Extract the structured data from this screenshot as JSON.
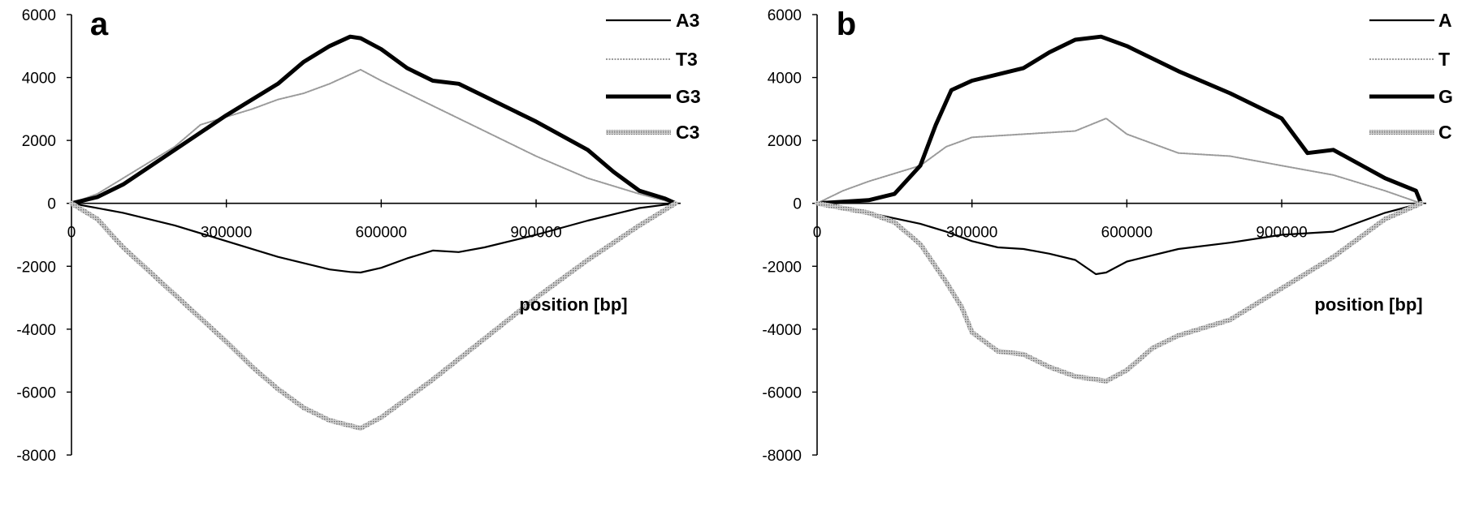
{
  "chart_data": [
    {
      "type": "line",
      "panel_label": "a",
      "xlabel": "position [bp]",
      "ylabel": "",
      "xlim": [
        0,
        1180000
      ],
      "ylim": [
        -8000,
        6000
      ],
      "x_ticks": [
        "300000",
        "600000",
        "900000"
      ],
      "x_origin_label": "0",
      "y_ticks": [
        "6000",
        "4000",
        "2000",
        "0",
        "-2000",
        "-4000",
        "-6000",
        "-8000"
      ],
      "grid": false,
      "legend_position": "top-right",
      "series": [
        {
          "name": "A3",
          "color": "#000000",
          "style": "thin-solid",
          "points": [
            [
              0,
              0
            ],
            [
              100000,
              -300
            ],
            [
              200000,
              -700
            ],
            [
              300000,
              -1200
            ],
            [
              400000,
              -1700
            ],
            [
              450000,
              -1900
            ],
            [
              500000,
              -2100
            ],
            [
              540000,
              -2180
            ],
            [
              560000,
              -2200
            ],
            [
              600000,
              -2050
            ],
            [
              650000,
              -1750
            ],
            [
              700000,
              -1500
            ],
            [
              750000,
              -1550
            ],
            [
              800000,
              -1400
            ],
            [
              900000,
              -1000
            ],
            [
              1000000,
              -550
            ],
            [
              1100000,
              -150
            ],
            [
              1170000,
              0
            ]
          ]
        },
        {
          "name": "T3",
          "color": "#9a9a9a",
          "style": "thin-dotted",
          "points": [
            [
              0,
              0
            ],
            [
              50000,
              300
            ],
            [
              100000,
              800
            ],
            [
              200000,
              1800
            ],
            [
              250000,
              2500
            ],
            [
              300000,
              2750
            ],
            [
              350000,
              3000
            ],
            [
              400000,
              3300
            ],
            [
              450000,
              3500
            ],
            [
              500000,
              3800
            ],
            [
              540000,
              4100
            ],
            [
              560000,
              4250
            ],
            [
              600000,
              3900
            ],
            [
              700000,
              3100
            ],
            [
              800000,
              2300
            ],
            [
              900000,
              1500
            ],
            [
              1000000,
              800
            ],
            [
              1100000,
              300
            ],
            [
              1170000,
              0
            ]
          ]
        },
        {
          "name": "G3",
          "color": "#000000",
          "style": "thick-solid",
          "points": [
            [
              0,
              0
            ],
            [
              50000,
              200
            ],
            [
              100000,
              600
            ],
            [
              200000,
              1700
            ],
            [
              300000,
              2800
            ],
            [
              400000,
              3800
            ],
            [
              450000,
              4500
            ],
            [
              500000,
              5000
            ],
            [
              540000,
              5300
            ],
            [
              560000,
              5250
            ],
            [
              600000,
              4900
            ],
            [
              650000,
              4300
            ],
            [
              700000,
              3900
            ],
            [
              750000,
              3800
            ],
            [
              800000,
              3400
            ],
            [
              900000,
              2600
            ],
            [
              1000000,
              1700
            ],
            [
              1050000,
              1000
            ],
            [
              1100000,
              400
            ],
            [
              1150000,
              150
            ],
            [
              1170000,
              0
            ]
          ]
        },
        {
          "name": "C3",
          "color": "#a8a8a8",
          "style": "thick-hatched",
          "points": [
            [
              0,
              0
            ],
            [
              50000,
              -500
            ],
            [
              100000,
              -1400
            ],
            [
              200000,
              -2900
            ],
            [
              300000,
              -4400
            ],
            [
              350000,
              -5200
            ],
            [
              400000,
              -5900
            ],
            [
              450000,
              -6500
            ],
            [
              500000,
              -6900
            ],
            [
              560000,
              -7150
            ],
            [
              600000,
              -6800
            ],
            [
              700000,
              -5600
            ],
            [
              800000,
              -4300
            ],
            [
              900000,
              -3000
            ],
            [
              1000000,
              -1800
            ],
            [
              1100000,
              -700
            ],
            [
              1150000,
              -200
            ],
            [
              1170000,
              0
            ]
          ]
        }
      ]
    },
    {
      "type": "line",
      "panel_label": "b",
      "xlabel": "position [bp]",
      "ylabel": "",
      "xlim": [
        0,
        1180000
      ],
      "ylim": [
        -8000,
        6000
      ],
      "x_ticks": [
        "300000",
        "600000",
        "900000"
      ],
      "x_origin_label": "0",
      "y_ticks": [
        "6000",
        "4000",
        "2000",
        "0",
        "-2000",
        "-4000",
        "-6000",
        "-8000"
      ],
      "grid": false,
      "legend_position": "top-right",
      "series": [
        {
          "name": "A",
          "color": "#000000",
          "style": "thin-solid",
          "points": [
            [
              0,
              0
            ],
            [
              100000,
              -300
            ],
            [
              200000,
              -650
            ],
            [
              250000,
              -900
            ],
            [
              300000,
              -1200
            ],
            [
              350000,
              -1400
            ],
            [
              400000,
              -1450
            ],
            [
              450000,
              -1600
            ],
            [
              500000,
              -1800
            ],
            [
              540000,
              -2250
            ],
            [
              560000,
              -2200
            ],
            [
              600000,
              -1850
            ],
            [
              700000,
              -1450
            ],
            [
              800000,
              -1250
            ],
            [
              900000,
              -1000
            ],
            [
              1000000,
              -900
            ],
            [
              1100000,
              -300
            ],
            [
              1170000,
              0
            ]
          ]
        },
        {
          "name": "T",
          "color": "#9a9a9a",
          "style": "thin-dotted",
          "points": [
            [
              0,
              0
            ],
            [
              50000,
              400
            ],
            [
              100000,
              700
            ],
            [
              200000,
              1200
            ],
            [
              250000,
              1800
            ],
            [
              300000,
              2100
            ],
            [
              400000,
              2200
            ],
            [
              500000,
              2300
            ],
            [
              560000,
              2700
            ],
            [
              600000,
              2200
            ],
            [
              700000,
              1600
            ],
            [
              800000,
              1500
            ],
            [
              900000,
              1200
            ],
            [
              1000000,
              900
            ],
            [
              1100000,
              400
            ],
            [
              1170000,
              0
            ]
          ]
        },
        {
          "name": "G",
          "color": "#000000",
          "style": "thick-solid",
          "points": [
            [
              0,
              0
            ],
            [
              100000,
              100
            ],
            [
              150000,
              300
            ],
            [
              200000,
              1200
            ],
            [
              230000,
              2500
            ],
            [
              260000,
              3600
            ],
            [
              300000,
              3900
            ],
            [
              400000,
              4300
            ],
            [
              450000,
              4800
            ],
            [
              500000,
              5200
            ],
            [
              550000,
              5300
            ],
            [
              600000,
              5000
            ],
            [
              700000,
              4200
            ],
            [
              800000,
              3500
            ],
            [
              900000,
              2700
            ],
            [
              950000,
              1600
            ],
            [
              1000000,
              1700
            ],
            [
              1100000,
              800
            ],
            [
              1160000,
              400
            ],
            [
              1170000,
              0
            ]
          ]
        },
        {
          "name": "C",
          "color": "#a8a8a8",
          "style": "thick-hatched",
          "points": [
            [
              0,
              0
            ],
            [
              100000,
              -300
            ],
            [
              150000,
              -600
            ],
            [
              200000,
              -1300
            ],
            [
              250000,
              -2500
            ],
            [
              280000,
              -3300
            ],
            [
              300000,
              -4100
            ],
            [
              350000,
              -4700
            ],
            [
              400000,
              -4800
            ],
            [
              450000,
              -5200
            ],
            [
              500000,
              -5500
            ],
            [
              560000,
              -5650
            ],
            [
              600000,
              -5300
            ],
            [
              650000,
              -4600
            ],
            [
              700000,
              -4200
            ],
            [
              800000,
              -3700
            ],
            [
              900000,
              -2700
            ],
            [
              1000000,
              -1700
            ],
            [
              1100000,
              -500
            ],
            [
              1170000,
              0
            ]
          ]
        }
      ]
    }
  ]
}
